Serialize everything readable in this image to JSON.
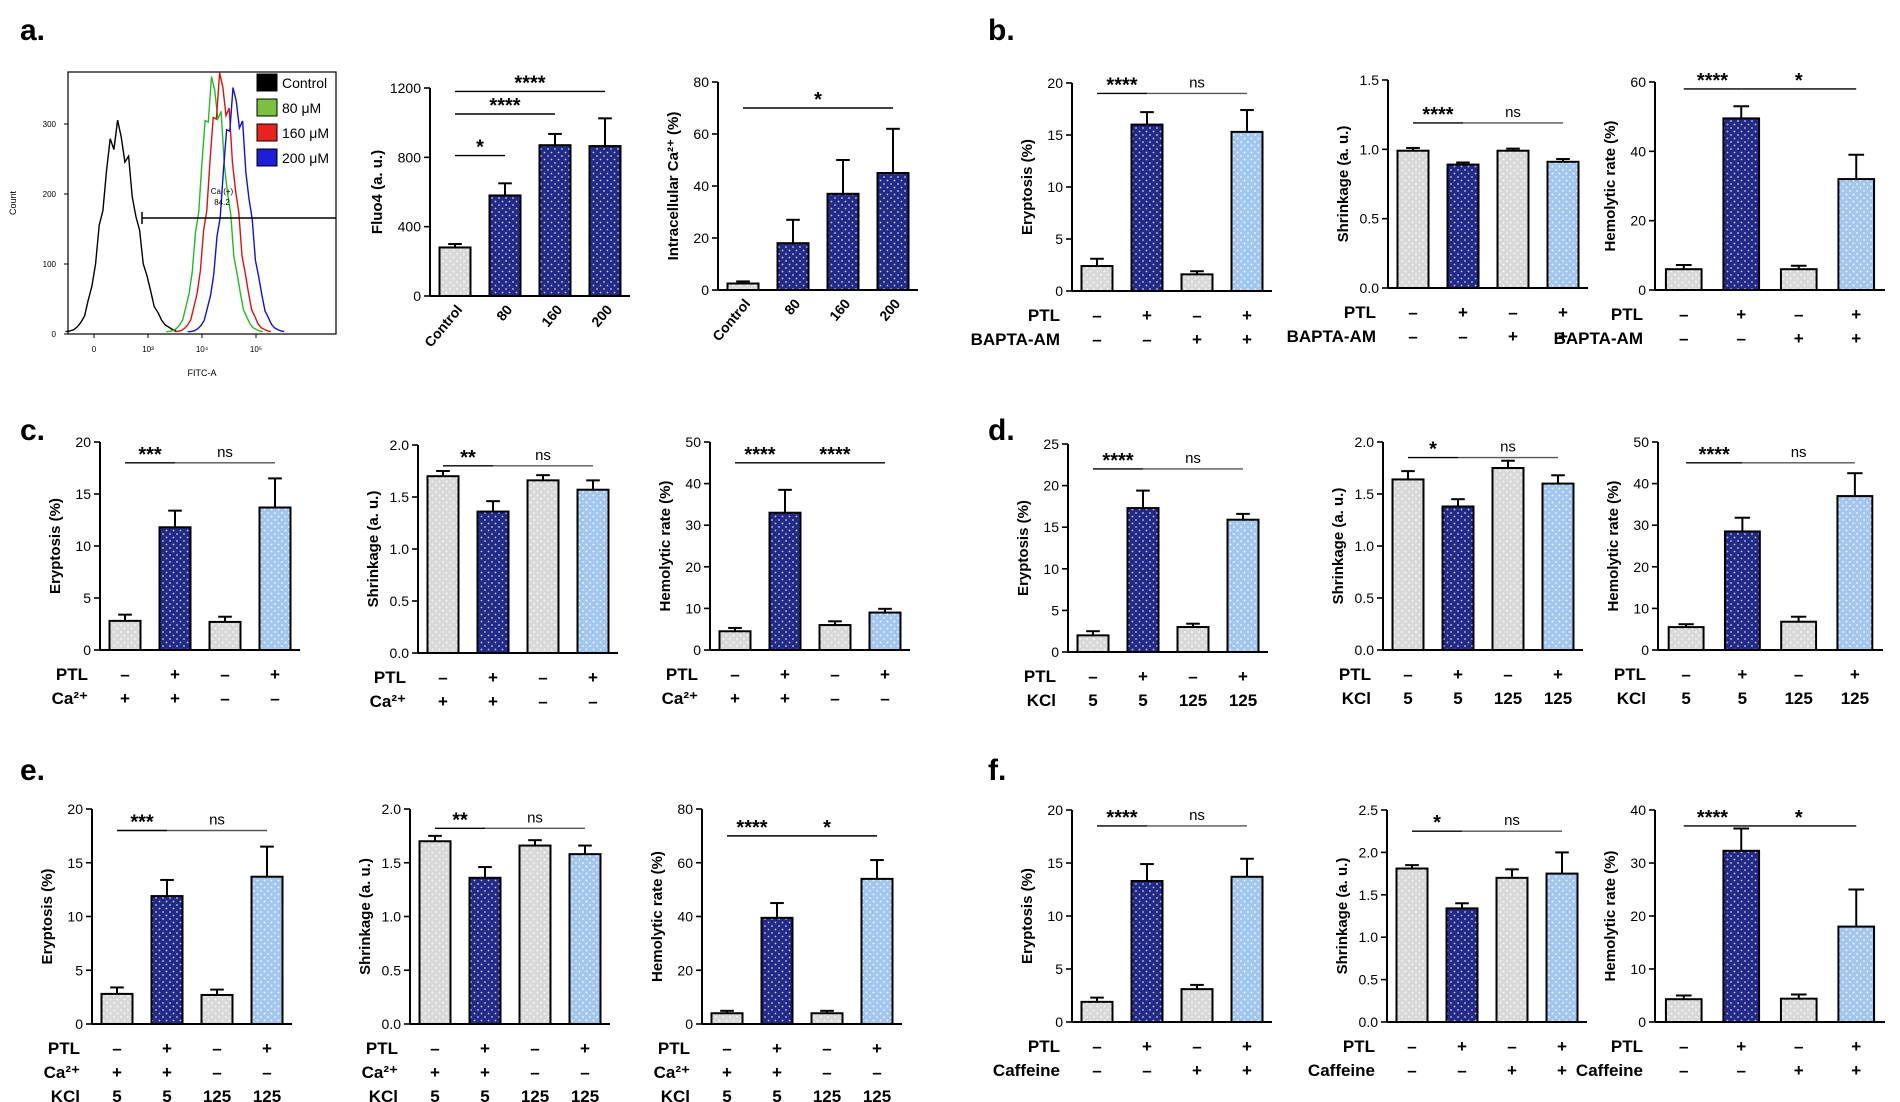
{
  "colors": {
    "control_fill": "#d9d9d9",
    "ptl_fill": "#222a88",
    "rescue_fill": "#a3c6ee",
    "hist_control": "#000000",
    "hist_80": "#22bb22",
    "hist_160": "#dd1111",
    "hist_200": "#1111dd",
    "legend_80": "#7ac142",
    "legend_160": "#e8231f",
    "legend_200": "#1e1ed6"
  },
  "panels": {
    "a": "a.",
    "b": "b.",
    "c": "c.",
    "d": "d.",
    "e": "e.",
    "f": "f."
  },
  "chart_data": [
    {
      "id": "a_hist",
      "type": "histogram",
      "xlabel": "FITC-A",
      "ylabel": "Count",
      "yticks": [
        "300",
        "200",
        "100",
        "0"
      ],
      "xticks": [
        "0",
        "10³",
        "10⁴",
        "10⁵"
      ],
      "gate_label": "Ca (+)",
      "gate_value": "84.2",
      "legend": [
        {
          "label": "Control",
          "color_key": "hist_control"
        },
        {
          "label": "80 μM",
          "color_key": "legend_80"
        },
        {
          "label": "160 μM",
          "color_key": "legend_160"
        },
        {
          "label": "200 μM",
          "color_key": "legend_200"
        }
      ],
      "series": [
        {
          "name": "Control",
          "color_key": "hist_control",
          "peak_x": 0.18,
          "peak_y": 290
        },
        {
          "name": "80 μM",
          "color_key": "hist_80",
          "peak_x": 0.54,
          "peak_y": 350
        },
        {
          "name": "160 μM",
          "color_key": "hist_160",
          "peak_x": 0.57,
          "peak_y": 355
        },
        {
          "name": "200 μM",
          "color_key": "hist_200",
          "peak_x": 0.62,
          "peak_y": 335
        }
      ]
    },
    {
      "id": "a_fluo",
      "type": "bar",
      "ylabel": "Fluo4 (a. u.)",
      "ylim": [
        0,
        1200
      ],
      "yticks": [
        0,
        400,
        800,
        1200
      ],
      "categories": [
        "Control",
        "80",
        "160",
        "200"
      ],
      "values": [
        280,
        580,
        870,
        865
      ],
      "errors": [
        20,
        70,
        65,
        160
      ],
      "fills": [
        "control_fill",
        "ptl_fill",
        "ptl_fill",
        "ptl_fill"
      ],
      "brackets": [
        {
          "from": 0,
          "to": 1,
          "label": "*",
          "y": 810
        },
        {
          "from": 0,
          "to": 2,
          "label": "****",
          "y": 1050
        },
        {
          "from": 0,
          "to": 3,
          "label": "****",
          "y": 1180
        }
      ]
    },
    {
      "id": "a_ca",
      "type": "bar",
      "ylabel": "Intracellular Ca²⁺ (%)",
      "ylim": [
        0,
        80
      ],
      "yticks": [
        0,
        20,
        40,
        60,
        80
      ],
      "categories": [
        "Control",
        "80",
        "160",
        "200"
      ],
      "values": [
        2.5,
        18,
        37,
        45
      ],
      "errors": [
        0.8,
        9,
        13,
        17
      ],
      "fills": [
        "control_fill",
        "ptl_fill",
        "ptl_fill",
        "ptl_fill"
      ],
      "brackets": [
        {
          "from": 0,
          "to": 3,
          "label": "*",
          "y": 70
        }
      ]
    },
    {
      "id": "b_ery",
      "type": "bar",
      "ylabel": "Eryptosis (%)",
      "ylim": [
        0,
        20
      ],
      "yticks": [
        0,
        5,
        10,
        15,
        20
      ],
      "values": [
        2.4,
        16,
        1.6,
        15.3
      ],
      "errors": [
        0.7,
        1.2,
        0.3,
        2.1
      ],
      "fills": [
        "control_fill",
        "ptl_fill",
        "control_fill",
        "rescue_fill"
      ],
      "brackets": [
        {
          "from": 0,
          "to": 1,
          "label": "****",
          "y": 19
        },
        {
          "from": 1,
          "to": 3,
          "label": "ns",
          "y": 19
        }
      ],
      "conditions": [
        {
          "label": "PTL",
          "values": [
            "–",
            "+",
            "–",
            "+"
          ]
        },
        {
          "label": "BAPTA-AM",
          "values": [
            "–",
            "–",
            "+",
            "+"
          ]
        }
      ]
    },
    {
      "id": "b_shr",
      "type": "bar",
      "ylabel": "Shrinkage (a. u.)",
      "ylim": [
        0,
        1.5
      ],
      "yticks": [
        "0.0",
        "0.5",
        "1.0",
        "1.5"
      ],
      "values": [
        0.99,
        0.89,
        0.99,
        0.91
      ],
      "errors": [
        0.02,
        0.015,
        0.015,
        0.02
      ],
      "fills": [
        "control_fill",
        "ptl_fill",
        "control_fill",
        "rescue_fill"
      ],
      "brackets": [
        {
          "from": 0,
          "to": 1,
          "label": "****",
          "y": 1.19
        },
        {
          "from": 1,
          "to": 3,
          "label": "ns",
          "y": 1.19
        }
      ],
      "conditions": [
        {
          "label": "PTL",
          "values": [
            "–",
            "+",
            "–",
            "+"
          ]
        },
        {
          "label": "BAPTA-AM",
          "values": [
            "–",
            "–",
            "+",
            "+"
          ]
        }
      ]
    },
    {
      "id": "b_hem",
      "type": "bar",
      "ylabel": "Hemolytic rate (%)",
      "ylim": [
        0,
        60
      ],
      "yticks": [
        0,
        20,
        40,
        60
      ],
      "values": [
        6,
        49.5,
        6,
        32
      ],
      "errors": [
        1.2,
        3.5,
        1,
        7
      ],
      "fills": [
        "control_fill",
        "ptl_fill",
        "control_fill",
        "rescue_fill"
      ],
      "brackets": [
        {
          "from": 0,
          "to": 1,
          "label": "****",
          "y": 58
        },
        {
          "from": 1,
          "to": 3,
          "label": "*",
          "y": 58
        }
      ],
      "conditions": [
        {
          "label": "PTL",
          "values": [
            "–",
            "+",
            "–",
            "+"
          ]
        },
        {
          "label": "BAPTA-AM",
          "values": [
            "–",
            "–",
            "+",
            "+"
          ]
        }
      ]
    },
    {
      "id": "c_ery",
      "type": "bar",
      "ylabel": "Eryptosis (%)",
      "ylim": [
        0,
        20
      ],
      "yticks": [
        0,
        5,
        10,
        15,
        20
      ],
      "values": [
        2.8,
        11.8,
        2.7,
        13.7
      ],
      "errors": [
        0.6,
        1.6,
        0.5,
        2.8
      ],
      "fills": [
        "control_fill",
        "ptl_fill",
        "control_fill",
        "rescue_fill"
      ],
      "brackets": [
        {
          "from": 0,
          "to": 1,
          "label": "***",
          "y": 18
        },
        {
          "from": 1,
          "to": 3,
          "label": "ns",
          "y": 18
        }
      ],
      "conditions": [
        {
          "label": "PTL",
          "values": [
            "–",
            "+",
            "–",
            "+"
          ]
        },
        {
          "label": "Ca²⁺",
          "values": [
            "+",
            "+",
            "–",
            "–"
          ]
        }
      ]
    },
    {
      "id": "c_shr",
      "type": "bar",
      "ylabel": "Shrinkage (a. u.)",
      "ylim": [
        0,
        2.0
      ],
      "yticks": [
        "0.0",
        "0.5",
        "1.0",
        "1.5",
        "2.0"
      ],
      "values": [
        1.7,
        1.36,
        1.66,
        1.57
      ],
      "errors": [
        0.05,
        0.1,
        0.05,
        0.09
      ],
      "fills": [
        "control_fill",
        "ptl_fill",
        "control_fill",
        "rescue_fill"
      ],
      "brackets": [
        {
          "from": 0,
          "to": 1,
          "label": "**",
          "y": 1.8
        },
        {
          "from": 1,
          "to": 3,
          "label": "ns",
          "y": 1.8
        }
      ],
      "conditions": [
        {
          "label": "PTL",
          "values": [
            "–",
            "+",
            "–",
            "+"
          ]
        },
        {
          "label": "Ca²⁺",
          "values": [
            "+",
            "+",
            "–",
            "–"
          ]
        }
      ]
    },
    {
      "id": "c_hem",
      "type": "bar",
      "ylabel": "Hemolytic rate (%)",
      "ylim": [
        0,
        50
      ],
      "yticks": [
        0,
        10,
        20,
        30,
        40,
        50
      ],
      "values": [
        4.5,
        33,
        6,
        9
      ],
      "errors": [
        0.8,
        5.5,
        0.9,
        0.9
      ],
      "fills": [
        "control_fill",
        "ptl_fill",
        "control_fill",
        "rescue_fill"
      ],
      "brackets": [
        {
          "from": 0,
          "to": 1,
          "label": "****",
          "y": 45
        },
        {
          "from": 1,
          "to": 3,
          "label": "****",
          "y": 45
        }
      ],
      "conditions": [
        {
          "label": "PTL",
          "values": [
            "–",
            "+",
            "–",
            "+"
          ]
        },
        {
          "label": "Ca²⁺",
          "values": [
            "+",
            "+",
            "–",
            "–"
          ]
        }
      ]
    },
    {
      "id": "d_ery",
      "type": "bar",
      "ylabel": "Eryptosis (%)",
      "ylim": [
        0,
        25
      ],
      "yticks": [
        0,
        5,
        10,
        15,
        20,
        25
      ],
      "values": [
        2,
        17.3,
        3,
        15.9
      ],
      "errors": [
        0.5,
        2.1,
        0.4,
        0.7
      ],
      "fills": [
        "control_fill",
        "ptl_fill",
        "control_fill",
        "rescue_fill"
      ],
      "brackets": [
        {
          "from": 0,
          "to": 1,
          "label": "****",
          "y": 22
        },
        {
          "from": 1,
          "to": 3,
          "label": "ns",
          "y": 22
        }
      ],
      "conditions": [
        {
          "label": "PTL",
          "values": [
            "–",
            "+",
            "–",
            "+"
          ]
        },
        {
          "label": "KCl",
          "values": [
            "5",
            "5",
            "125",
            "125"
          ]
        }
      ]
    },
    {
      "id": "d_shr",
      "type": "bar",
      "ylabel": "Shrinkage (a. u.)",
      "ylim": [
        0,
        2.0
      ],
      "yticks": [
        "0.0",
        "0.5",
        "1.0",
        "1.5",
        "2.0"
      ],
      "values": [
        1.64,
        1.38,
        1.75,
        1.6
      ],
      "errors": [
        0.08,
        0.07,
        0.07,
        0.08
      ],
      "fills": [
        "control_fill",
        "ptl_fill",
        "control_fill",
        "rescue_fill"
      ],
      "brackets": [
        {
          "from": 0,
          "to": 1,
          "label": "*",
          "y": 1.85
        },
        {
          "from": 1,
          "to": 3,
          "label": "ns",
          "y": 1.85
        }
      ],
      "conditions": [
        {
          "label": "PTL",
          "values": [
            "–",
            "+",
            "–",
            "+"
          ]
        },
        {
          "label": "KCl",
          "values": [
            "5",
            "5",
            "125",
            "125"
          ]
        }
      ]
    },
    {
      "id": "d_hem",
      "type": "bar",
      "ylabel": "Hemolytic rate (%)",
      "ylim": [
        0,
        50
      ],
      "yticks": [
        0,
        10,
        20,
        30,
        40,
        50
      ],
      "values": [
        5.5,
        28.5,
        6.8,
        37
      ],
      "errors": [
        0.7,
        3.3,
        1.2,
        5.5
      ],
      "fills": [
        "control_fill",
        "ptl_fill",
        "control_fill",
        "rescue_fill"
      ],
      "brackets": [
        {
          "from": 0,
          "to": 1,
          "label": "****",
          "y": 45
        },
        {
          "from": 1,
          "to": 3,
          "label": "ns",
          "y": 45
        }
      ],
      "conditions": [
        {
          "label": "PTL",
          "values": [
            "–",
            "+",
            "–",
            "+"
          ]
        },
        {
          "label": "KCl",
          "values": [
            "5",
            "5",
            "125",
            "125"
          ]
        }
      ]
    },
    {
      "id": "e_ery",
      "type": "bar",
      "ylabel": "Eryptosis (%)",
      "ylim": [
        0,
        20
      ],
      "yticks": [
        0,
        5,
        10,
        15,
        20
      ],
      "values": [
        2.8,
        11.9,
        2.7,
        13.7
      ],
      "errors": [
        0.6,
        1.5,
        0.5,
        2.8
      ],
      "fills": [
        "control_fill",
        "ptl_fill",
        "control_fill",
        "rescue_fill"
      ],
      "brackets": [
        {
          "from": 0,
          "to": 1,
          "label": "***",
          "y": 18
        },
        {
          "from": 1,
          "to": 3,
          "label": "ns",
          "y": 18
        }
      ],
      "conditions": [
        {
          "label": "PTL",
          "values": [
            "–",
            "+",
            "–",
            "+"
          ]
        },
        {
          "label": "Ca²⁺",
          "values": [
            "+",
            "+",
            "–",
            "–"
          ]
        },
        {
          "label": "KCl",
          "values": [
            "5",
            "5",
            "125",
            "125"
          ]
        }
      ]
    },
    {
      "id": "e_shr",
      "type": "bar",
      "ylabel": "Shrinkage (a. u.)",
      "ylim": [
        0,
        2.0
      ],
      "yticks": [
        "0.0",
        "0.5",
        "1.0",
        "1.5",
        "2.0"
      ],
      "values": [
        1.7,
        1.36,
        1.66,
        1.58
      ],
      "errors": [
        0.05,
        0.1,
        0.05,
        0.08
      ],
      "fills": [
        "control_fill",
        "ptl_fill",
        "control_fill",
        "rescue_fill"
      ],
      "brackets": [
        {
          "from": 0,
          "to": 1,
          "label": "**",
          "y": 1.82
        },
        {
          "from": 1,
          "to": 3,
          "label": "ns",
          "y": 1.82
        }
      ],
      "conditions": [
        {
          "label": "PTL",
          "values": [
            "–",
            "+",
            "–",
            "+"
          ]
        },
        {
          "label": "Ca²⁺",
          "values": [
            "+",
            "+",
            "–",
            "–"
          ]
        },
        {
          "label": "KCl",
          "values": [
            "5",
            "5",
            "125",
            "125"
          ]
        }
      ]
    },
    {
      "id": "e_hem",
      "type": "bar",
      "ylabel": "Hemolytic rate (%)",
      "ylim": [
        0,
        80
      ],
      "yticks": [
        0,
        20,
        40,
        60,
        80
      ],
      "values": [
        4,
        39.5,
        4,
        54
      ],
      "errors": [
        0.9,
        5.5,
        0.9,
        7
      ],
      "fills": [
        "control_fill",
        "ptl_fill",
        "control_fill",
        "rescue_fill"
      ],
      "brackets": [
        {
          "from": 0,
          "to": 1,
          "label": "****",
          "y": 70
        },
        {
          "from": 1,
          "to": 3,
          "label": "*",
          "y": 70
        }
      ],
      "conditions": [
        {
          "label": "PTL",
          "values": [
            "–",
            "+",
            "–",
            "+"
          ]
        },
        {
          "label": "Ca²⁺",
          "values": [
            "+",
            "+",
            "–",
            "–"
          ]
        },
        {
          "label": "KCl",
          "values": [
            "5",
            "5",
            "125",
            "125"
          ]
        }
      ]
    },
    {
      "id": "f_ery",
      "type": "bar",
      "ylabel": "Eryptosis (%)",
      "ylim": [
        0,
        20
      ],
      "yticks": [
        0,
        5,
        10,
        15,
        20
      ],
      "values": [
        1.9,
        13.3,
        3.1,
        13.7
      ],
      "errors": [
        0.4,
        1.6,
        0.4,
        1.7
      ],
      "fills": [
        "control_fill",
        "ptl_fill",
        "control_fill",
        "rescue_fill"
      ],
      "brackets": [
        {
          "from": 0,
          "to": 1,
          "label": "****",
          "y": 18.5
        },
        {
          "from": 1,
          "to": 3,
          "label": "ns",
          "y": 18.5
        }
      ],
      "conditions": [
        {
          "label": "PTL",
          "values": [
            "–",
            "+",
            "–",
            "+"
          ]
        },
        {
          "label": "Caffeine",
          "values": [
            "–",
            "–",
            "+",
            "+"
          ]
        }
      ]
    },
    {
      "id": "f_shr",
      "type": "bar",
      "ylabel": "Shrinkage (a. u.)",
      "ylim": [
        0,
        2.5
      ],
      "yticks": [
        "0.0",
        "0.5",
        "1.0",
        "1.5",
        "2.0",
        "2.5"
      ],
      "values": [
        1.81,
        1.34,
        1.7,
        1.75
      ],
      "errors": [
        0.04,
        0.06,
        0.1,
        0.25
      ],
      "fills": [
        "control_fill",
        "ptl_fill",
        "control_fill",
        "rescue_fill"
      ],
      "brackets": [
        {
          "from": 0,
          "to": 1,
          "label": "*",
          "y": 2.25
        },
        {
          "from": 1,
          "to": 3,
          "label": "ns",
          "y": 2.25
        }
      ],
      "conditions": [
        {
          "label": "PTL",
          "values": [
            "–",
            "+",
            "–",
            "+"
          ]
        },
        {
          "label": "Caffeine",
          "values": [
            "–",
            "–",
            "+",
            "+"
          ]
        }
      ]
    },
    {
      "id": "f_hem",
      "type": "bar",
      "ylabel": "Hemolytic rate (%)",
      "ylim": [
        0,
        40
      ],
      "yticks": [
        0,
        10,
        20,
        30,
        40
      ],
      "values": [
        4.3,
        32.3,
        4.4,
        18
      ],
      "errors": [
        0.7,
        4.2,
        0.8,
        7
      ],
      "fills": [
        "control_fill",
        "ptl_fill",
        "control_fill",
        "rescue_fill"
      ],
      "brackets": [
        {
          "from": 0,
          "to": 1,
          "label": "****",
          "y": 37
        },
        {
          "from": 1,
          "to": 3,
          "label": "*",
          "y": 37
        }
      ],
      "conditions": [
        {
          "label": "PTL",
          "values": [
            "–",
            "+",
            "–",
            "+"
          ]
        },
        {
          "label": "Caffeine",
          "values": [
            "–",
            "–",
            "+",
            "+"
          ]
        }
      ]
    }
  ]
}
